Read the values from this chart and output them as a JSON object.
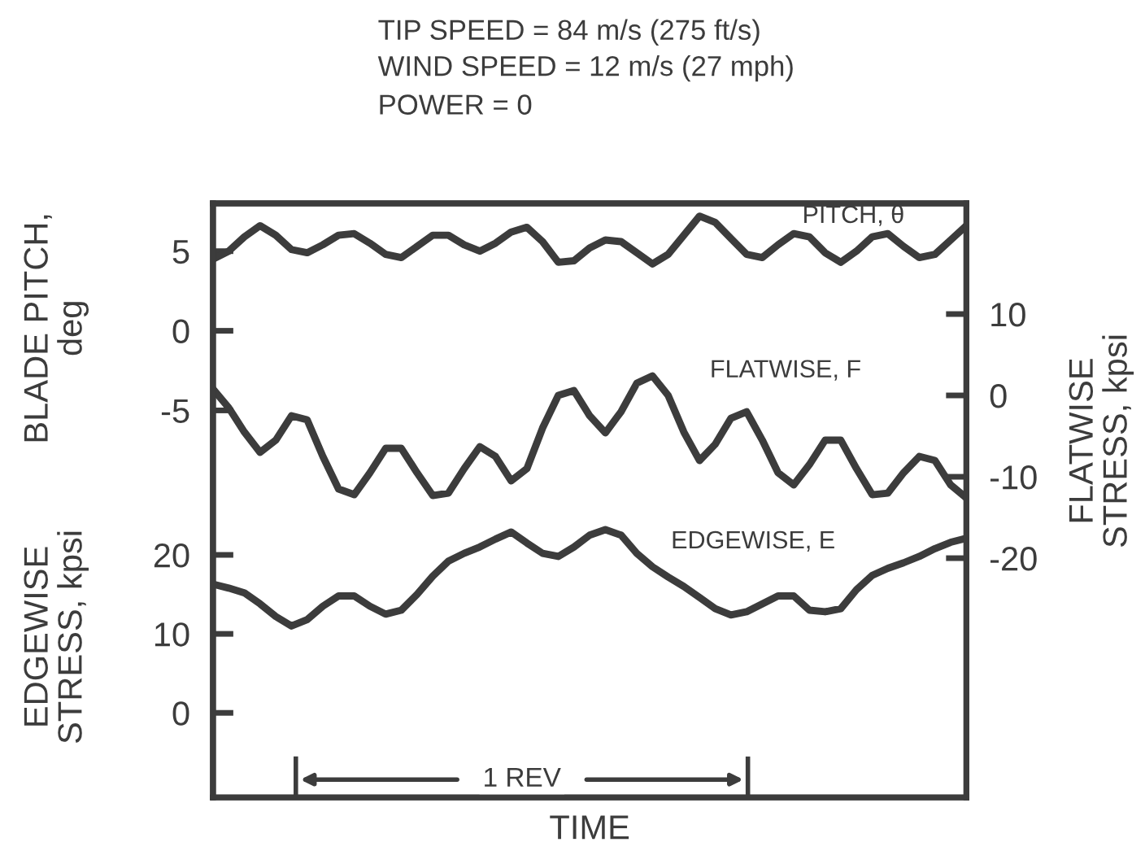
{
  "chart_data": {
    "type": "line",
    "title": "TIP SPEED = 84 m/s (275 ft/s)",
    "subtitle": "WIND SPEED = 12 m/s (27 mph)\nPOWER = 0",
    "xlabel": "TIME",
    "ylabel": "BLADE PITCH,\ndeg",
    "y2label": "FLATWISE\nSTRESS, kpsi",
    "y3label": "EDGEWISE\nSTRESS, kpsi",
    "annotations": [
      "1 REV"
    ],
    "categories": [
      null,
      null,
      null,
      null,
      null,
      null,
      null,
      null,
      null,
      null,
      null,
      null,
      null,
      null,
      null,
      null,
      null,
      null,
      null,
      null,
      null,
      null,
      null,
      null,
      null,
      null,
      null,
      null,
      null,
      null,
      null,
      null,
      null,
      null,
      null,
      null,
      null,
      null,
      null,
      null,
      null,
      null,
      null,
      null,
      null,
      null,
      null,
      null,
      null
    ],
    "ylim": [
      -29.3,
      8
    ],
    "yticks": [
      -5,
      0,
      5
    ],
    "y2lim": [
      -49.4,
      23.6
    ],
    "y2ticks": [
      -20,
      -10,
      0,
      10
    ],
    "y3lim": [
      -10.7,
      64.5
    ],
    "y3ticks": [
      0,
      10,
      20
    ],
    "tick_labels": "y",
    "marker": "none",
    "line_style": "solid",
    "grid": false,
    "series": [
      {
        "name": "PITCH, θ",
        "color": "#3c3c3c",
        "axis": "y",
        "values": [
          4.5,
          5.0,
          5.9,
          6.6,
          6.0,
          5.1,
          4.9,
          5.4,
          6.0,
          6.1,
          5.5,
          4.8,
          4.6,
          5.3,
          6.0,
          6.0,
          5.4,
          5.0,
          5.5,
          6.2,
          6.5,
          5.6,
          4.3,
          4.4,
          5.2,
          5.7,
          5.6,
          4.9,
          4.2,
          4.8,
          6.0,
          7.2,
          6.8,
          5.8,
          4.8,
          4.6,
          5.4,
          6.1,
          5.9,
          4.9,
          4.3,
          5.0,
          5.9,
          6.1,
          5.3,
          4.6,
          4.8,
          5.7,
          6.6
        ]
      },
      {
        "name": "FLATWISE, F",
        "color": "#3c3c3c",
        "axis": "y2",
        "values": [
          0.8,
          -1.5,
          -4.5,
          -7.0,
          -5.5,
          -2.5,
          -3.0,
          -7.5,
          -11.5,
          -12.2,
          -9.5,
          -6.5,
          -6.5,
          -9.5,
          -12.3,
          -12.0,
          -9.0,
          -6.3,
          -7.5,
          -10.5,
          -9.0,
          -4.0,
          0.0,
          0.6,
          -2.5,
          -4.6,
          -2.0,
          1.5,
          2.4,
          0.0,
          -4.5,
          -8.0,
          -6.0,
          -2.8,
          -2.0,
          -5.5,
          -9.5,
          -11.0,
          -8.5,
          -5.5,
          -5.5,
          -9.0,
          -12.2,
          -12.0,
          -9.5,
          -7.5,
          -8.0,
          -11.0,
          -12.6
        ]
      },
      {
        "name": "EDGEWISE, E",
        "color": "#3c3c3c",
        "axis": "y3",
        "values": [
          16.3,
          15.8,
          15.2,
          13.8,
          12.2,
          11.0,
          11.8,
          13.5,
          14.8,
          14.8,
          13.5,
          12.5,
          13.0,
          15.0,
          17.3,
          19.2,
          20.2,
          21.0,
          22.0,
          22.9,
          21.5,
          20.2,
          19.8,
          21.0,
          22.5,
          23.2,
          22.5,
          20.2,
          18.5,
          17.2,
          16.0,
          14.6,
          13.2,
          12.4,
          12.8,
          13.8,
          14.8,
          14.8,
          13.0,
          12.8,
          13.2,
          15.6,
          17.4,
          18.3,
          19.0,
          19.8,
          20.8,
          21.6,
          22.1
        ]
      }
    ]
  }
}
